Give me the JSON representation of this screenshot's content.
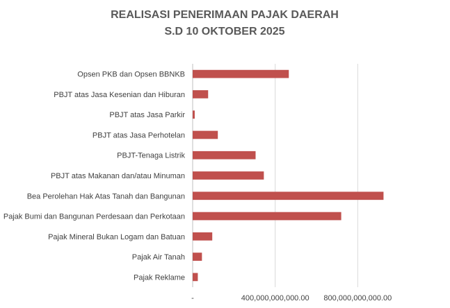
{
  "chart_data": {
    "type": "bar",
    "orientation": "horizontal",
    "title_lines": [
      "REALISASI PENERIMAAN PAJAK DAERAH",
      "S.D 10 OKTOBER 2025"
    ],
    "categories": [
      "Opsen PKB dan Opsen BBNKB",
      "PBJT atas Jasa Kesenian dan Hiburan",
      "PBJT atas Jasa Parkir",
      "PBJT atas Jasa Perhotelan",
      "PBJT-Tenaga Listrik",
      "PBJT atas Makanan dan/atau Minuman",
      "Bea Perolehan Hak Atas Tanah dan Bangunan",
      "Pajak Bumi dan Bangunan Perdesaan dan Perkotaan",
      "Pajak Mineral Bukan Logam dan Batuan",
      "Pajak Air Tanah",
      "Pajak Reklame"
    ],
    "values": [
      466000000000,
      75000000000,
      10000000000,
      122000000000,
      305000000000,
      345000000000,
      925000000000,
      720000000000,
      95000000000,
      45000000000,
      25000000000
    ],
    "xlim": [
      0,
      1200000000000
    ],
    "xticks": [
      0,
      400000000000,
      800000000000
    ],
    "xtick_labels": [
      "-",
      "400,000,000,000.00",
      "800,000,000,000.00"
    ],
    "bar_color": "#c0504d",
    "grid": true,
    "legend": "none"
  }
}
